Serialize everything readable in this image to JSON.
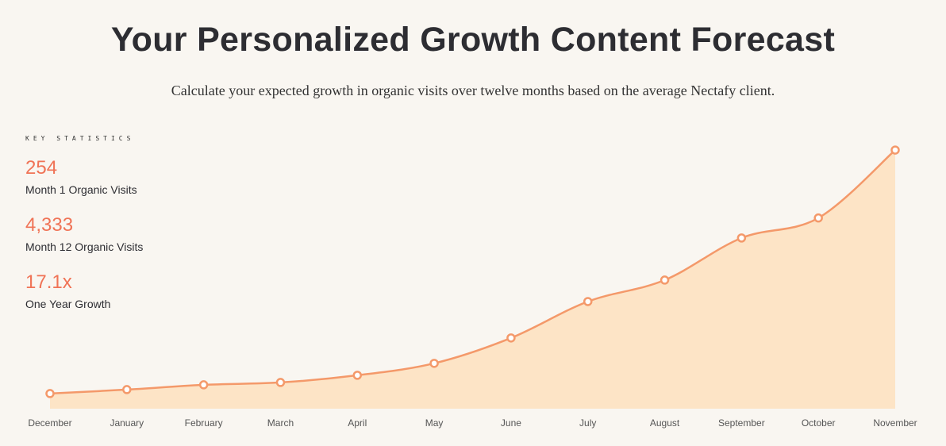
{
  "header": {
    "title": "Your Personalized Growth Content Forecast",
    "subtitle": "Calculate your expected growth in organic visits over twelve months based on the average Nectafy client."
  },
  "key_statistics": {
    "heading": "KEY STATISTICS",
    "items": [
      {
        "value": "254",
        "label": "Month 1 Organic Visits"
      },
      {
        "value": "4,333",
        "label": "Month 12 Organic Visits"
      },
      {
        "value": "17.1x",
        "label": "One Year Growth"
      }
    ]
  },
  "chart_data": {
    "type": "area",
    "categories": [
      "December",
      "January",
      "February",
      "March",
      "April",
      "May",
      "June",
      "July",
      "August",
      "September",
      "October",
      "November"
    ],
    "values": [
      254,
      320,
      400,
      440,
      560,
      760,
      1185,
      1795,
      2155,
      2860,
      3195,
      4333
    ],
    "color": "#f4996a",
    "fill": "#fde4c6",
    "ylim": [
      0,
      4600
    ]
  }
}
